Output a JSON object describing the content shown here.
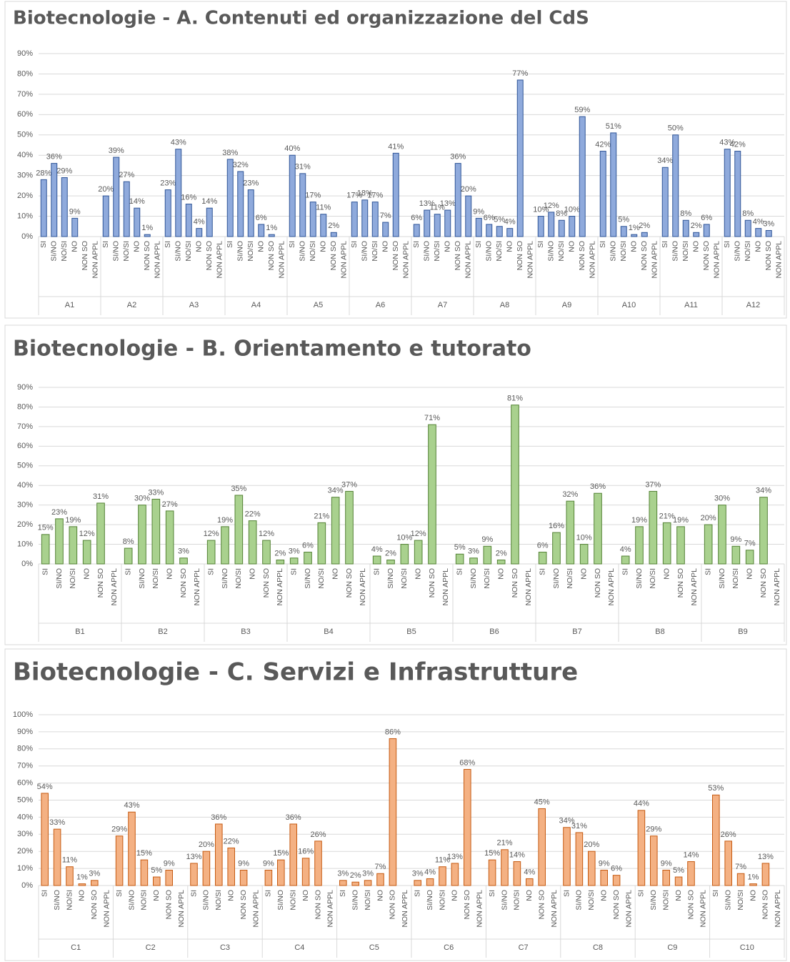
{
  "chart_data": [
    {
      "type": "bar",
      "title": "Biotecnologie - A. Contenuti ed organizzazione del CdS",
      "color": "#8faadc",
      "edge": "#2f5597",
      "groups": [
        "A1",
        "A2",
        "A3",
        "A4",
        "A5",
        "A6",
        "A7",
        "A8",
        "A9",
        "A10",
        "A11",
        "A12"
      ],
      "subcategories": [
        "SI",
        "SI/NO",
        "NO/SI",
        "NO",
        "NON SO",
        "NON APPL"
      ],
      "values": [
        [
          28,
          36,
          29,
          9,
          null,
          null
        ],
        [
          20,
          39,
          27,
          14,
          1,
          null
        ],
        [
          23,
          43,
          16,
          4,
          14,
          null
        ],
        [
          38,
          32,
          23,
          6,
          1,
          null
        ],
        [
          40,
          31,
          17,
          11,
          2,
          null
        ],
        [
          17,
          18,
          17,
          7,
          41,
          null
        ],
        [
          6,
          13,
          11,
          13,
          36,
          20
        ],
        [
          9,
          6,
          5,
          4,
          77,
          null
        ],
        [
          10,
          12,
          8,
          10,
          59,
          null
        ],
        [
          42,
          51,
          5,
          1,
          2,
          null
        ],
        [
          34,
          50,
          8,
          2,
          6,
          null
        ],
        [
          43,
          42,
          8,
          4,
          3,
          null
        ]
      ],
      "value_labels": [
        [
          "28%",
          "36%",
          "29%",
          "9%",
          null,
          null
        ],
        [
          "20%",
          "39%",
          "27%",
          "14%",
          "1%",
          null
        ],
        [
          "23%",
          "43%",
          "16%",
          "4%",
          "14%",
          null
        ],
        [
          "38%",
          "32%",
          "23%",
          "6%",
          "1%",
          null
        ],
        [
          "40%",
          "31%",
          "17%",
          "11%",
          "2%",
          null
        ],
        [
          "17%",
          "18%",
          "17%",
          "7%",
          "41%",
          null
        ],
        [
          "6%",
          "13%",
          "11%",
          "13%",
          "36%",
          "20%"
        ],
        [
          "9%",
          "6%",
          "5%",
          "4%",
          "77%",
          null
        ],
        [
          "10%",
          "12%",
          "8%",
          "10%",
          "59%",
          null
        ],
        [
          "42%",
          "51%",
          "5%",
          "1%",
          "2%",
          null
        ],
        [
          "34%",
          "50%",
          "8%",
          "2%",
          "6%",
          null
        ],
        [
          "43%",
          "42%",
          "8%",
          "4%",
          "3%",
          null
        ]
      ],
      "ylim": [
        0,
        90
      ],
      "yticks": [
        {
          "value": 0,
          "label": "0%"
        },
        {
          "value": 10,
          "label": "10%"
        },
        {
          "value": 20,
          "label": "20%"
        },
        {
          "value": 30,
          "label": "30%"
        },
        {
          "value": 40,
          "label": "40%"
        },
        {
          "value": 50,
          "label": "50%"
        },
        {
          "value": 60,
          "label": "60%"
        },
        {
          "value": 70,
          "label": "70%"
        },
        {
          "value": 80,
          "label": "80%"
        },
        {
          "value": 90,
          "label": "90%"
        }
      ],
      "grid": true
    },
    {
      "type": "bar",
      "title": "Biotecnologie - B. Orientamento e tutorato",
      "color": "#a9d18e",
      "edge": "#548235",
      "groups": [
        "B1",
        "B2",
        "B3",
        "B4",
        "B5",
        "B6",
        "B7",
        "B8",
        "B9"
      ],
      "subcategories": [
        "SI",
        "SI/NO",
        "NO/SI",
        "NO",
        "NON SO",
        "NON APPL"
      ],
      "values": [
        [
          15,
          23,
          19,
          12,
          31,
          null
        ],
        [
          8,
          30,
          33,
          27,
          3,
          null
        ],
        [
          12,
          19,
          35,
          22,
          12,
          2
        ],
        [
          3,
          6,
          21,
          34,
          37,
          null
        ],
        [
          4,
          2,
          10,
          12,
          71,
          null
        ],
        [
          5,
          3,
          9,
          2,
          81,
          null
        ],
        [
          6,
          16,
          32,
          10,
          36,
          null
        ],
        [
          4,
          19,
          37,
          21,
          19,
          null
        ],
        [
          20,
          30,
          9,
          7,
          34,
          null
        ]
      ],
      "value_labels": [
        [
          "15%",
          "23%",
          "19%",
          "12%",
          "31%",
          null
        ],
        [
          "8%",
          "30%",
          "33%",
          "27%",
          "3%",
          null
        ],
        [
          "12%",
          "19%",
          "35%",
          "22%",
          "12%",
          "2%"
        ],
        [
          "3%",
          "6%",
          "21%",
          "34%",
          "37%",
          null
        ],
        [
          "4%",
          "2%",
          "10%",
          "12%",
          "71%",
          null
        ],
        [
          "5%",
          "3%",
          "9%",
          "2%",
          "81%",
          null
        ],
        [
          "6%",
          "16%",
          "32%",
          "10%",
          "36%",
          null
        ],
        [
          "4%",
          "19%",
          "37%",
          "21%",
          "19%",
          null
        ],
        [
          "20%",
          "30%",
          "9%",
          "7%",
          "34%",
          null
        ]
      ],
      "ylim": [
        0,
        90
      ],
      "yticks": [
        {
          "value": 0,
          "label": "0%"
        },
        {
          "value": 10,
          "label": "10%"
        },
        {
          "value": 20,
          "label": "20%"
        },
        {
          "value": 30,
          "label": "30%"
        },
        {
          "value": 40,
          "label": "40%"
        },
        {
          "value": 50,
          "label": "50%"
        },
        {
          "value": 60,
          "label": "60%"
        },
        {
          "value": 70,
          "label": "70%"
        },
        {
          "value": 80,
          "label": "80%"
        },
        {
          "value": 90,
          "label": "90%"
        }
      ],
      "grid": true
    },
    {
      "type": "bar",
      "title": "Biotecnologie - C. Servizi e Infrastrutture",
      "color": "#f4b183",
      "edge": "#c55a11",
      "groups": [
        "C1",
        "C2",
        "C3",
        "C4",
        "C5",
        "C6",
        "C7",
        "C8",
        "C9",
        "C10"
      ],
      "subcategories": [
        "SI",
        "SI/NO",
        "NO/SI",
        "NO",
        "NON SO",
        "NON APPL"
      ],
      "values": [
        [
          54,
          33,
          11,
          1,
          3,
          null
        ],
        [
          29,
          43,
          15,
          5,
          9,
          null
        ],
        [
          13,
          20,
          36,
          22,
          9,
          null
        ],
        [
          9,
          15,
          36,
          16,
          26,
          null
        ],
        [
          3,
          2,
          3,
          7,
          86,
          null
        ],
        [
          3,
          4,
          11,
          13,
          68,
          null
        ],
        [
          15,
          21,
          14,
          4,
          45,
          null
        ],
        [
          34,
          31,
          20,
          9,
          6,
          null
        ],
        [
          44,
          29,
          9,
          5,
          14,
          null
        ],
        [
          53,
          26,
          7,
          1,
          13,
          null
        ]
      ],
      "value_labels": [
        [
          "54%",
          "33%",
          "11%",
          "1%",
          "3%",
          null
        ],
        [
          "29%",
          "43%",
          "15%",
          "5%",
          "9%",
          null
        ],
        [
          "13%",
          "20%",
          "36%",
          "22%",
          "9%",
          null
        ],
        [
          "9%",
          "15%",
          "36%",
          "16%",
          "26%",
          null
        ],
        [
          "3%",
          "2%",
          "3%",
          "7%",
          "86%",
          null
        ],
        [
          "3%",
          "4%",
          "11%",
          "13%",
          "68%",
          null
        ],
        [
          "15%",
          "21%",
          "14%",
          "4%",
          "45%",
          null
        ],
        [
          "34%",
          "31%",
          "20%",
          "9%",
          "6%",
          null
        ],
        [
          "44%",
          "29%",
          "9%",
          "5%",
          "14%",
          null
        ],
        [
          "53%",
          "26%",
          "7%",
          "1%",
          "13%",
          null
        ]
      ],
      "ylim": [
        0,
        100
      ],
      "yticks": [
        {
          "value": 0,
          "label": "0%"
        },
        {
          "value": 10,
          "label": "10%"
        },
        {
          "value": 20,
          "label": "20%"
        },
        {
          "value": 30,
          "label": "30%"
        },
        {
          "value": 40,
          "label": "40%"
        },
        {
          "value": 50,
          "label": "50%"
        },
        {
          "value": 60,
          "label": "60%"
        },
        {
          "value": 70,
          "label": "70%"
        },
        {
          "value": 80,
          "label": "80%"
        },
        {
          "value": 90,
          "label": "90%"
        },
        {
          "value": 100,
          "label": "100%"
        }
      ],
      "grid": true
    }
  ]
}
